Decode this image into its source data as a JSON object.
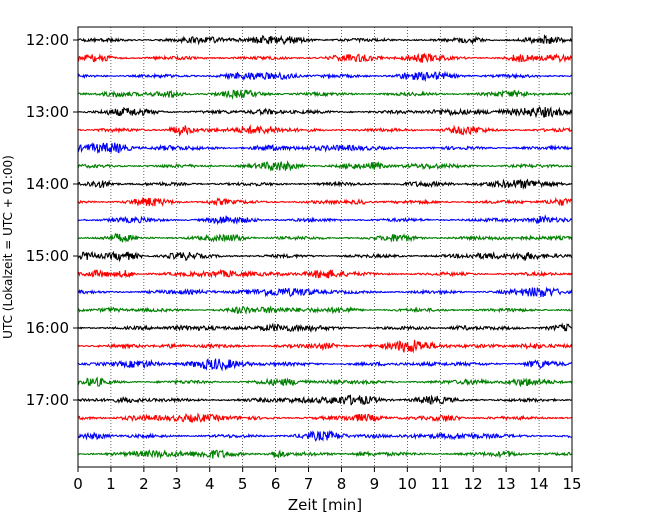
{
  "chart_data": {
    "type": "line",
    "title": "",
    "xlabel": "Zeit  [min]",
    "ylabel": "UTC (Lokalzeit = UTC + 01:00)",
    "xlim": [
      0,
      15
    ],
    "x_ticks": [
      "0",
      "1",
      "2",
      "3",
      "4",
      "5",
      "6",
      "7",
      "8",
      "9",
      "10",
      "11",
      "12",
      "13",
      "14",
      "15"
    ],
    "y_tick_labels": [
      "12:00",
      "13:00",
      "14:00",
      "15:00",
      "16:00",
      "17:00"
    ],
    "traces_start": "12:00",
    "trace_interval_minutes": 15,
    "trace_count": 24,
    "colors_cycle": [
      "#000000",
      "#ff0000",
      "#0000ff",
      "#008000"
    ],
    "grid_x": true,
    "grid_y": false,
    "legend": "none"
  }
}
